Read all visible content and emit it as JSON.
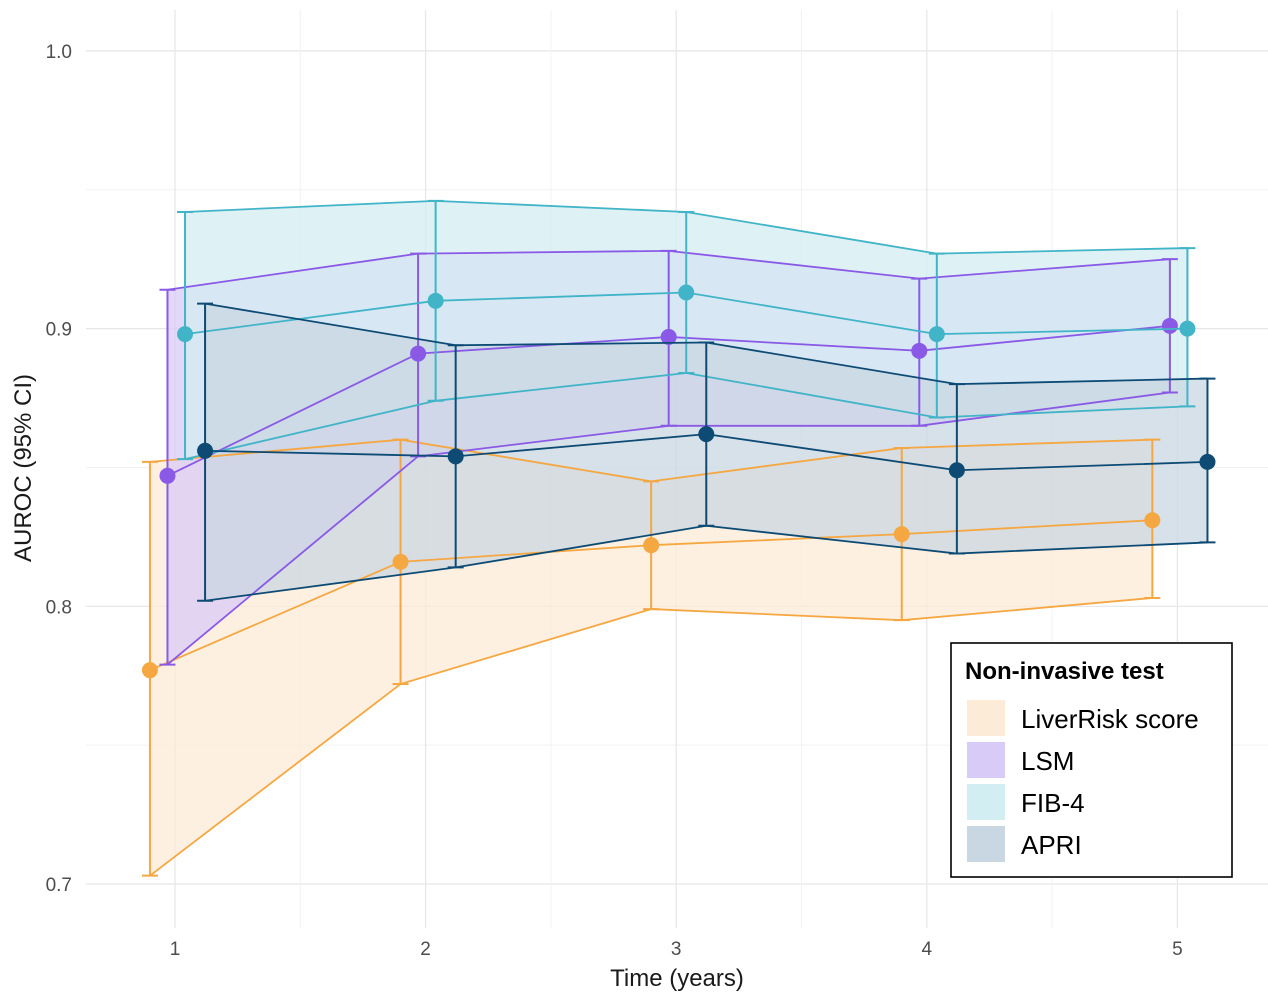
{
  "chart_data": {
    "type": "line",
    "title": "",
    "xlabel": "Time (years)",
    "ylabel": "AUROC (95% CI)",
    "x_ticks": [
      "1",
      "2",
      "3",
      "4",
      "5"
    ],
    "y_ticks": [
      "0.7",
      "0.8",
      "0.9",
      "1.0"
    ],
    "xlim": [
      0.6,
      5.4
    ],
    "ylim": [
      0.69,
      1.015
    ],
    "grid": true,
    "legend": {
      "title": "Non-invasive test",
      "position": "bottom-right"
    },
    "series": [
      {
        "name": "LiverRisk score",
        "color": "#F5A742",
        "fill": "#FCEBD6",
        "x": [
          1,
          2,
          3,
          4,
          5
        ],
        "dodge": -0.1,
        "estimate": [
          0.777,
          0.816,
          0.822,
          0.826,
          0.831
        ],
        "lower": [
          0.703,
          0.772,
          0.799,
          0.795,
          0.803
        ],
        "upper": [
          0.852,
          0.86,
          0.845,
          0.857,
          0.86
        ]
      },
      {
        "name": "LSM",
        "color": "#8A5AE6",
        "fill": "#D9CBF8",
        "x": [
          1,
          2,
          3,
          4,
          5
        ],
        "dodge": -0.03,
        "estimate": [
          0.847,
          0.891,
          0.897,
          0.892,
          0.901
        ],
        "lower": [
          0.779,
          0.854,
          0.865,
          0.865,
          0.877
        ],
        "upper": [
          0.914,
          0.927,
          0.928,
          0.918,
          0.925
        ]
      },
      {
        "name": "FIB-4",
        "color": "#42B4C8",
        "fill": "#D3EEF2",
        "x": [
          1,
          2,
          3,
          4,
          5
        ],
        "dodge": 0.04,
        "estimate": [
          0.898,
          0.91,
          0.913,
          0.898,
          0.9
        ],
        "lower": [
          0.853,
          0.874,
          0.884,
          0.868,
          0.872
        ],
        "upper": [
          0.942,
          0.946,
          0.942,
          0.927,
          0.929
        ]
      },
      {
        "name": "APRI",
        "color": "#0D4B75",
        "fill": "#C9D7E2",
        "x": [
          1,
          2,
          3,
          4,
          5
        ],
        "dodge": 0.12,
        "estimate": [
          0.856,
          0.854,
          0.862,
          0.849,
          0.852
        ],
        "lower": [
          0.802,
          0.814,
          0.829,
          0.819,
          0.823
        ],
        "upper": [
          0.909,
          0.894,
          0.895,
          0.88,
          0.882
        ]
      }
    ]
  }
}
